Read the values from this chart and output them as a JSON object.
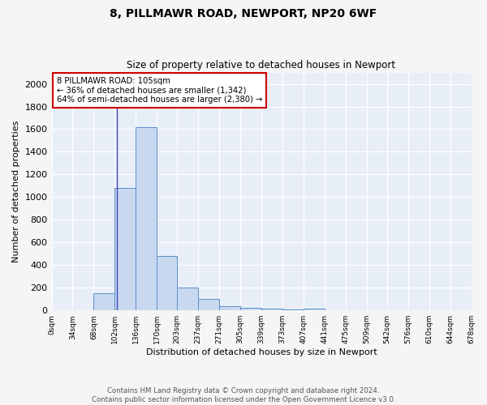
{
  "title1": "8, PILLMAWR ROAD, NEWPORT, NP20 6WF",
  "title2": "Size of property relative to detached houses in Newport",
  "xlabel": "Distribution of detached houses by size in Newport",
  "ylabel": "Number of detached properties",
  "bin_edges": [
    0,
    34,
    68,
    102,
    136,
    170,
    203,
    237,
    271,
    305,
    339,
    373,
    407,
    441,
    475,
    509,
    542,
    576,
    610,
    644,
    678
  ],
  "bin_labels": [
    "0sqm",
    "34sqm",
    "68sqm",
    "102sqm",
    "136sqm",
    "170sqm",
    "203sqm",
    "237sqm",
    "271sqm",
    "305sqm",
    "339sqm",
    "373sqm",
    "407sqm",
    "441sqm",
    "475sqm",
    "509sqm",
    "542sqm",
    "576sqm",
    "610sqm",
    "644sqm",
    "678sqm"
  ],
  "bar_heights": [
    0,
    0,
    155,
    1080,
    1620,
    480,
    200,
    100,
    40,
    25,
    15,
    10,
    15,
    0,
    0,
    0,
    0,
    0,
    0,
    0
  ],
  "bar_color": "#c8d9ef",
  "bar_edgecolor": "#5b8fc9",
  "background_color": "#e8eef8",
  "grid_color": "#ffffff",
  "property_size": 105,
  "annotation_text": "8 PILLMAWR ROAD: 105sqm\n← 36% of detached houses are smaller (1,342)\n64% of semi-detached houses are larger (2,380) →",
  "vline_color": "#4444bb",
  "annotation_box_edgecolor": "#cc0000",
  "annotation_box_facecolor": "#ffffff",
  "ylim": [
    0,
    2100
  ],
  "yticks": [
    0,
    200,
    400,
    600,
    800,
    1000,
    1200,
    1400,
    1600,
    1800,
    2000
  ],
  "footnote": "Contains HM Land Registry data © Crown copyright and database right 2024.\nContains public sector information licensed under the Open Government Licence v3.0.",
  "fig_facecolor": "#f5f5f5"
}
